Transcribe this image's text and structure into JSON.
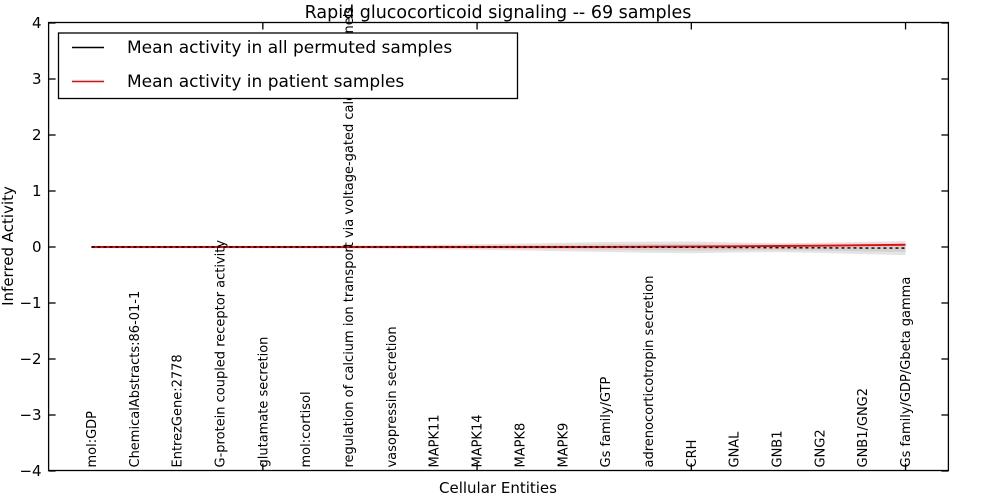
{
  "window": {
    "title": "Rapid glucocorticoid signaling -- 69 samples"
  },
  "chart_data": {
    "type": "line",
    "title": "Rapid glucocorticoid signaling -- 69 samples",
    "xlabel": "Cellular Entities",
    "ylabel": "Inferred Activity",
    "ylim": [
      -4,
      4
    ],
    "xlim_slots": [
      0,
      21
    ],
    "grid": false,
    "legend_position": "upper left",
    "frame_color": "#000000",
    "band_color_outer": "#e4e4e4",
    "band_color_inner": "#d2d2d2",
    "yticklabels": [
      "4",
      "3",
      "2",
      "1",
      "0",
      "−1",
      "−2",
      "−3",
      "−4"
    ],
    "ytickvalues": [
      4,
      3,
      2,
      1,
      0,
      -1,
      -2,
      -3,
      -4
    ],
    "top_tick_slot_indices": [
      4,
      9,
      14,
      19
    ],
    "categories": [
      "mol:GDP",
      "ChemicalAbstracts:86-01-1",
      "EntrezGene:2778",
      "G-protein coupled receptor activity",
      "glutamate secretion",
      "mol:cortisol",
      "regulation of calcium ion transport via voltage-gated calcium channels",
      "vasopressin secretion",
      "MAPK11",
      "MAPK14",
      "MAPK8",
      "MAPK9",
      "Gs family/GTP",
      "adrenocorticotropin secretion",
      "CRH",
      "GNAL",
      "GNB1",
      "GNG2",
      "GNB1/GNG2",
      "Gs family/GDP/Gbeta gamma"
    ],
    "series": [
      {
        "name": "Mean activity in all permuted samples",
        "color": "#000000",
        "style": "dashed-over-solid",
        "values": [
          0,
          0,
          0,
          0,
          0,
          0,
          0,
          0,
          0,
          0,
          0,
          0,
          0,
          -0.003,
          -0.006,
          -0.009,
          -0.012,
          -0.015,
          -0.018,
          -0.02
        ]
      },
      {
        "name": "Mean activity in patient samples",
        "color": "#ff0000",
        "style": "solid",
        "values": [
          0,
          0,
          0,
          0,
          0,
          0,
          0,
          0,
          0,
          0,
          0,
          0,
          0.002,
          0.005,
          0.008,
          0.012,
          0.018,
          0.024,
          0.032,
          0.04
        ]
      }
    ],
    "band_halfwidth": [
      0.015,
      0.015,
      0.015,
      0.015,
      0.018,
      0.02,
      0.025,
      0.03,
      0.04,
      0.05,
      0.06,
      0.075,
      0.09,
      0.1,
      0.105,
      0.09,
      0.08,
      0.09,
      0.11,
      0.125
    ]
  }
}
